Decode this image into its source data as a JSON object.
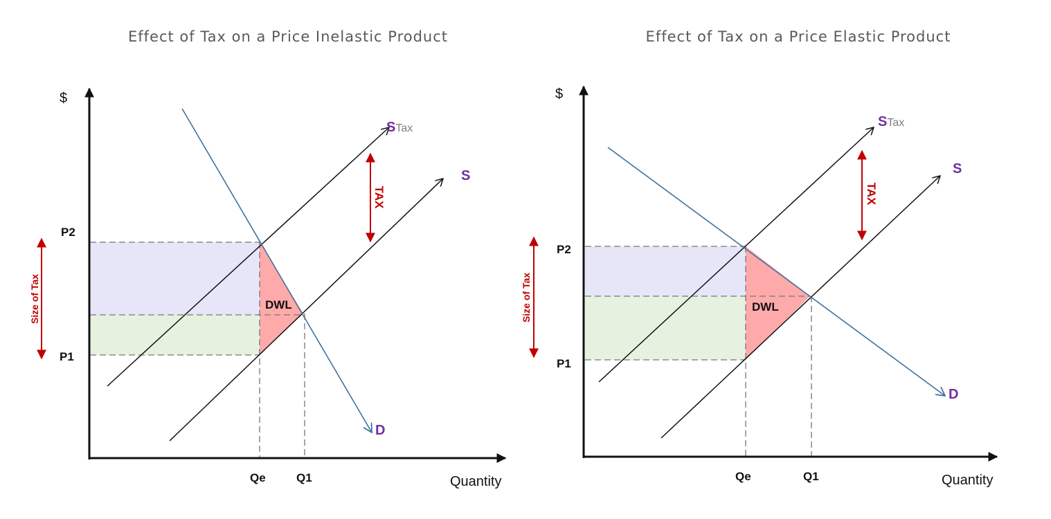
{
  "left": {
    "title": "Effect of Tax on a Price Inelastic Product",
    "y_axis_label": "$",
    "x_axis_label": "Quantity",
    "p2": "P2",
    "p1": "P1",
    "qe": "Qe",
    "q1": "Q1",
    "dwl": "DWL",
    "stax_s": "S",
    "stax_sub": "Tax",
    "supply": "S",
    "demand": "D",
    "tax": "TAX",
    "size_of_tax": "Size of Tax"
  },
  "right": {
    "title": "Effect of Tax on a Price Elastic Product",
    "y_axis_label": "$",
    "x_axis_label": "Quantity",
    "p2": "P2",
    "p1": "P1",
    "qe": "Qe",
    "q1": "Q1",
    "dwl": "DWL",
    "stax_s": "S",
    "stax_sub": "Tax",
    "supply": "S",
    "demand": "D",
    "tax": "TAX",
    "size_of_tax": "Size of Tax"
  },
  "colors": {
    "consumer_tax_area": "#e6e6f8",
    "producer_tax_area": "#e6f2df",
    "dwl": "#ffaaaa",
    "demand": "#41719c",
    "tax_arrow": "#c00000",
    "curve_label": "#7030a0"
  }
}
